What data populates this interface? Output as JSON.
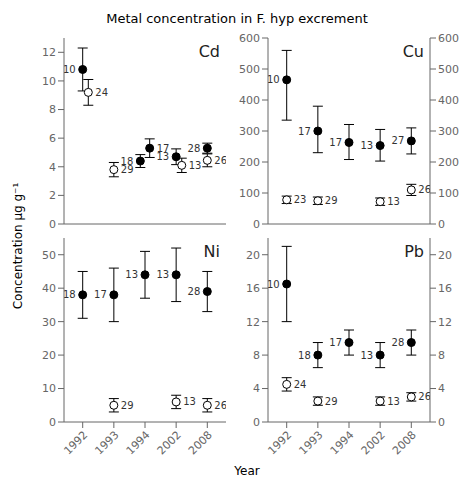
{
  "title": "Metal concentration in F. hyp excrement",
  "xlabel": "Year",
  "ylabel": "Concentration μg g⁻¹",
  "chart_data": [
    {
      "type": "scatter",
      "title": "Cd",
      "tick_labels": "y",
      "categories": [
        "1992",
        "1993",
        "1994",
        "2002",
        "2008"
      ],
      "ylim": [
        0,
        13
      ],
      "yticks": [
        0,
        2,
        4,
        6,
        8,
        10,
        12
      ],
      "series": [
        {
          "color": "#000000",
          "marker": "circle",
          "x": [
            "1992",
            "1994",
            "1994",
            "2002",
            "2008"
          ],
          "values": [
            10.8,
            4.4,
            5.3,
            4.7,
            5.3
          ],
          "err_low": [
            1.5,
            0.45,
            0.65,
            0.55,
            0.35
          ],
          "err_high": [
            1.5,
            0.45,
            0.65,
            0.55,
            0.35
          ],
          "labels": [
            "10",
            "18",
            "17",
            "13",
            "28"
          ]
        },
        {
          "color": "#000000",
          "marker": "open",
          "x": [
            "1992",
            "1993",
            "2002",
            "2008"
          ],
          "values": [
            9.2,
            3.8,
            4.1,
            4.45
          ],
          "err_low": [
            0.9,
            0.5,
            0.5,
            0.45
          ],
          "err_high": [
            0.9,
            0.5,
            0.5,
            0.45
          ],
          "labels": [
            "24",
            "29",
            "13",
            "26"
          ]
        }
      ]
    },
    {
      "type": "scatter",
      "title": "Cu",
      "tick_labels": "y",
      "categories": [
        "1992",
        "1993",
        "1994",
        "2002",
        "2008"
      ],
      "ylim": [
        0,
        600
      ],
      "yticks": [
        0,
        100,
        200,
        300,
        400,
        500,
        600
      ],
      "y2lim": [
        0,
        600
      ],
      "y2ticks": [
        0,
        100,
        200,
        300,
        400,
        500,
        600
      ],
      "series": [
        {
          "color": "#000000",
          "marker": "circle",
          "x": [
            "1992",
            "1993",
            "1994",
            "2002",
            "2008"
          ],
          "values": [
            465,
            300,
            263,
            253,
            268
          ],
          "err_low": [
            130,
            70,
            55,
            50,
            42
          ],
          "err_high": [
            95,
            80,
            58,
            52,
            42
          ],
          "labels": [
            "10",
            "17",
            "17",
            "13",
            "27"
          ]
        },
        {
          "color": "#000000",
          "marker": "open",
          "x": [
            "1992",
            "1993",
            "2002",
            "2008"
          ],
          "values": [
            78,
            75,
            72,
            110
          ],
          "err_low": [
            12,
            12,
            12,
            18
          ],
          "err_high": [
            12,
            12,
            12,
            18
          ],
          "labels": [
            "23",
            "29",
            "13",
            "26"
          ]
        }
      ]
    },
    {
      "type": "scatter",
      "title": "Ni",
      "categories": [
        "1992",
        "1993",
        "1994",
        "2002",
        "2008"
      ],
      "ylim": [
        0,
        55
      ],
      "yticks": [
        0,
        10,
        20,
        30,
        40,
        50
      ],
      "series": [
        {
          "color": "#000000",
          "marker": "circle",
          "x": [
            "1992",
            "1993",
            "1994",
            "2002",
            "2008"
          ],
          "values": [
            38,
            38,
            44,
            44,
            39
          ],
          "err_low": [
            7,
            8,
            7,
            8,
            6
          ],
          "err_high": [
            7,
            8,
            7,
            8,
            6
          ],
          "labels": [
            "18",
            "17",
            "13",
            "13",
            "28"
          ]
        },
        {
          "color": "#000000",
          "marker": "open",
          "x": [
            "1993",
            "2002",
            "2008"
          ],
          "values": [
            5.0,
            6.0,
            5.0
          ],
          "err_low": [
            2.0,
            2.0,
            2.0
          ],
          "err_high": [
            2.0,
            2.0,
            2.0
          ],
          "labels": [
            "29",
            "13",
            "26"
          ]
        }
      ]
    },
    {
      "type": "scatter",
      "title": "Pb",
      "categories": [
        "1992",
        "1993",
        "1994",
        "2002",
        "2008"
      ],
      "ylim": [
        0,
        22
      ],
      "yticks": [
        0,
        4,
        8,
        12,
        16,
        20
      ],
      "y2lim": [
        0,
        22
      ],
      "y2ticks": [
        0,
        4,
        8,
        12,
        16,
        20
      ],
      "series": [
        {
          "color": "#000000",
          "marker": "circle",
          "x": [
            "1992",
            "1993",
            "1994",
            "2002",
            "2008"
          ],
          "values": [
            16.5,
            8.0,
            9.5,
            8.0,
            9.5
          ],
          "err_low": [
            4.5,
            1.5,
            1.5,
            1.5,
            1.5
          ],
          "err_high": [
            4.5,
            1.5,
            1.5,
            1.5,
            1.5
          ],
          "labels": [
            "10",
            "18",
            "17",
            "13",
            "28"
          ]
        },
        {
          "color": "#000000",
          "marker": "open",
          "x": [
            "1992",
            "1993",
            "2002",
            "2008"
          ],
          "values": [
            4.5,
            2.5,
            2.5,
            3.0
          ],
          "err_low": [
            0.8,
            0.5,
            0.5,
            0.5
          ],
          "err_high": [
            0.8,
            0.5,
            0.5,
            0.5
          ],
          "labels": [
            "24",
            "29",
            "13",
            "26"
          ]
        }
      ]
    }
  ]
}
